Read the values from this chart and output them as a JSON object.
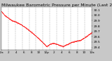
{
  "title": "Milwaukee Barometric Pressure per Minute (Last 24 Hours)",
  "title_fontsize": 4.5,
  "bg_color": "#c8c8c8",
  "plot_bg_color": "#ffffff",
  "line_color": "#ff0000",
  "grid_color": "#888888",
  "ylim": [
    29.35,
    30.15
  ],
  "y_ticks": [
    29.4,
    29.5,
    29.6,
    29.7,
    29.8,
    29.9,
    30.0,
    30.1
  ],
  "ytick_fontsize": 3.2,
  "xtick_fontsize": 3.0,
  "num_points": 1440,
  "vgrid_count": 12,
  "marker_size": 0.55,
  "xtick_labels": [
    "12a",
    "2",
    "4",
    "6",
    "8",
    "10",
    "12p",
    "2",
    "4",
    "6",
    "8",
    "10",
    "12a"
  ]
}
